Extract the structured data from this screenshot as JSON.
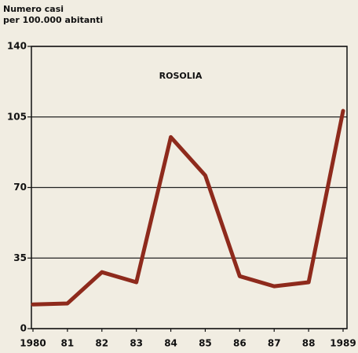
{
  "chart_data": {
    "type": "line",
    "title": "ROSOLIA",
    "ylabel": [
      "Numero casi",
      "per 100.000 abitanti"
    ],
    "categories": [
      "1980",
      "81",
      "82",
      "83",
      "84",
      "85",
      "86",
      "87",
      "88",
      "1989"
    ],
    "values": [
      12,
      12.5,
      28,
      23,
      95,
      76,
      26,
      21,
      23,
      108
    ],
    "color": "#8e2a1c",
    "ylim": [
      0,
      140
    ],
    "yticks": [
      0,
      35,
      70,
      105,
      140
    ],
    "grid": true
  }
}
